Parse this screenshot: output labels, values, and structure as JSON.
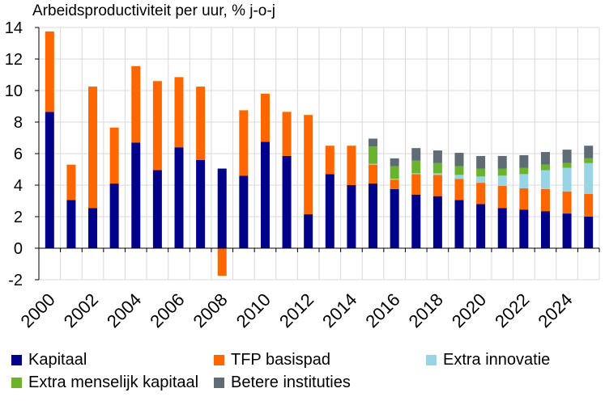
{
  "chart_data": {
    "type": "bar",
    "stacked": true,
    "title": "Arbeidsproductiviteit per uur, % j-o-j",
    "xlabel": "",
    "ylabel": "",
    "ylim": [
      -2,
      14
    ],
    "yticks": [
      "-2",
      "0",
      "2",
      "4",
      "6",
      "8",
      "10",
      "12",
      "14"
    ],
    "ytick_values": [
      -2,
      0,
      2,
      4,
      6,
      8,
      10,
      12,
      14
    ],
    "grid": true,
    "legend_position": "bottom",
    "categories": [
      "2000",
      "2001",
      "2002",
      "2003",
      "2004",
      "2005",
      "2006",
      "2007",
      "2008",
      "2009",
      "2010",
      "2011",
      "2012",
      "2013",
      "2014",
      "2015",
      "2016",
      "2017",
      "2018",
      "2019",
      "2020",
      "2021",
      "2022",
      "2023",
      "2024",
      "2025"
    ],
    "xtick_labels": [
      "2000",
      "",
      "2002",
      "",
      "2004",
      "",
      "2006",
      "",
      "2008",
      "",
      "2010",
      "",
      "2012",
      "",
      "2014",
      "",
      "2016",
      "",
      "2018",
      "",
      "2020",
      "",
      "2022",
      "",
      "2024",
      ""
    ],
    "series": [
      {
        "name": "Kapitaal",
        "color": "#00008B",
        "values": [
          8.65,
          3.05,
          2.55,
          4.1,
          6.7,
          4.95,
          6.4,
          5.6,
          5.05,
          4.6,
          6.75,
          5.85,
          2.15,
          4.7,
          4.0,
          4.1,
          3.75,
          3.4,
          3.3,
          3.05,
          2.8,
          2.55,
          2.45,
          2.35,
          2.2,
          2.0
        ]
      },
      {
        "name": "TFP basispad",
        "color": "#FF6600",
        "values": [
          5.1,
          2.25,
          7.7,
          3.55,
          4.85,
          5.65,
          4.45,
          4.65,
          -1.75,
          4.15,
          3.05,
          2.8,
          6.3,
          1.8,
          2.5,
          1.2,
          0.6,
          1.3,
          1.35,
          1.35,
          1.35,
          1.4,
          1.35,
          1.4,
          1.4,
          1.45
        ]
      },
      {
        "name": "Extra innovatie",
        "color": "#99D4E4",
        "values": [
          0,
          0,
          0,
          0,
          0,
          0,
          0,
          0,
          0,
          0,
          0,
          0,
          0,
          0,
          0,
          0.05,
          0.05,
          0.05,
          0.1,
          0.25,
          0.4,
          0.65,
          0.9,
          1.2,
          1.5,
          1.95
        ]
      },
      {
        "name": "Extra menselijk kapitaal",
        "color": "#6AB42D",
        "values": [
          0,
          0,
          0,
          0,
          0,
          0,
          0,
          0,
          0,
          0,
          0,
          0,
          0,
          0,
          0,
          1.1,
          0.8,
          0.8,
          0.65,
          0.55,
          0.5,
          0.45,
          0.4,
          0.35,
          0.3,
          0.3
        ]
      },
      {
        "name": "Betere instituties",
        "color": "#5F6B75",
        "values": [
          0,
          0,
          0,
          0,
          0,
          0,
          0,
          0,
          0,
          0,
          0,
          0,
          0,
          0,
          0,
          0.5,
          0.5,
          0.8,
          0.8,
          0.85,
          0.8,
          0.8,
          0.8,
          0.8,
          0.85,
          0.8
        ]
      }
    ]
  }
}
